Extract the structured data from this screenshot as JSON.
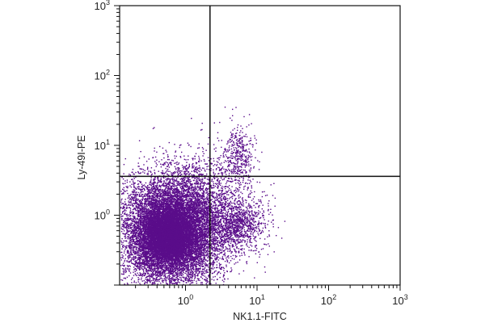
{
  "chart_data": {
    "type": "scatter",
    "xlabel": "NK1.1-FITC",
    "ylabel": "Ly-49I-PE",
    "x_scale": "log",
    "y_scale": "log",
    "xlim": [
      0.12,
      1000
    ],
    "ylim": [
      0.1,
      1000
    ],
    "x_ticks": [
      {
        "value": 1,
        "base": "10",
        "exp": "0"
      },
      {
        "value": 10,
        "base": "10",
        "exp": "1"
      },
      {
        "value": 100,
        "base": "10",
        "exp": "2"
      },
      {
        "value": 1000,
        "base": "10",
        "exp": "3"
      }
    ],
    "y_ticks": [
      {
        "value": 1,
        "base": "10",
        "exp": "0"
      },
      {
        "value": 10,
        "base": "10",
        "exp": "1"
      },
      {
        "value": 100,
        "base": "10",
        "exp": "2"
      },
      {
        "value": 1000,
        "base": "10",
        "exp": "3"
      }
    ],
    "quadrant_gate": {
      "x": 2.2,
      "y": 3.6
    },
    "point_color": "#5a0d8a",
    "grid": false,
    "legend": "none",
    "populations": [
      {
        "center": [
          0.62,
          0.6
        ],
        "spread": [
          0.35,
          0.38
        ],
        "count": 12000
      },
      {
        "center": [
          0.55,
          0.5
        ],
        "spread": [
          0.18,
          0.2
        ],
        "count": 5000
      },
      {
        "center": [
          5.0,
          0.75
        ],
        "spread": [
          0.22,
          0.2
        ],
        "count": 1200
      },
      {
        "center": [
          5.5,
          6.5
        ],
        "spread": [
          0.12,
          0.25
        ],
        "count": 450
      },
      {
        "center": [
          1.6,
          2.4
        ],
        "spread": [
          0.28,
          0.28
        ],
        "count": 650
      }
    ]
  }
}
